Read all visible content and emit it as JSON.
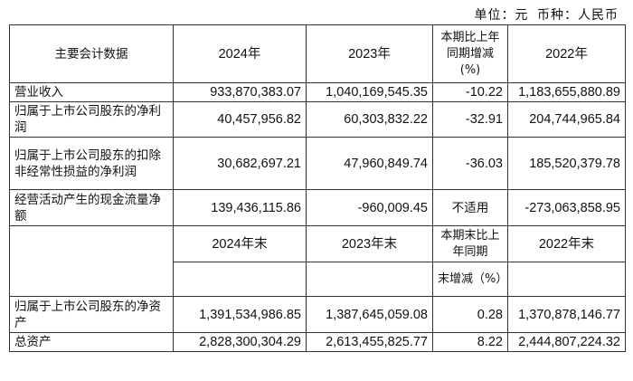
{
  "unit": {
    "label": "单位：元",
    "currency": "币种：人民币"
  },
  "header1": {
    "col0": "主要会计数据",
    "col1": "2024年",
    "col2": "2023年",
    "col3": "本期比上年同期增减(%)",
    "col4": "2022年"
  },
  "rows1": [
    {
      "label": "营业收入",
      "y2024": "933,870,383.07",
      "y2023": "1,040,169,545.35",
      "change": "-10.22",
      "y2022": "1,183,655,880.89"
    },
    {
      "label": "归属于上市公司股东的净利润",
      "y2024": "40,457,956.82",
      "y2023": "60,303,832.22",
      "change": "-32.91",
      "y2022": "204,744,965.84"
    },
    {
      "label": "归属于上市公司股东的扣除非经常性损益的净利润",
      "y2024": "30,682,697.21",
      "y2023": "47,960,849.74",
      "change": "-36.03",
      "y2022": "185,520,379.78"
    },
    {
      "label": "经营活动产生的现金流量净额",
      "y2024": "139,436,115.86",
      "y2023": "-960,009.45",
      "change": "不适用",
      "y2022": "-273,063,858.95"
    }
  ],
  "header2": {
    "col1": "2024年末",
    "col2": "2023年末",
    "col3a": "本期末比上年同期",
    "col3b": "末增减（%）",
    "col4": "2022年末"
  },
  "rows2": [
    {
      "label": "归属于上市公司股东的净资产",
      "y2024": "1,391,534,986.85",
      "y2023": "1,387,645,059.08",
      "change": "0.28",
      "y2022": "1,370,878,146.77"
    },
    {
      "label": "总资产",
      "y2024": "2,828,300,304.29",
      "y2023": "2,613,455,825.77",
      "change": "8.22",
      "y2022": "2,444,807,224.32"
    }
  ]
}
